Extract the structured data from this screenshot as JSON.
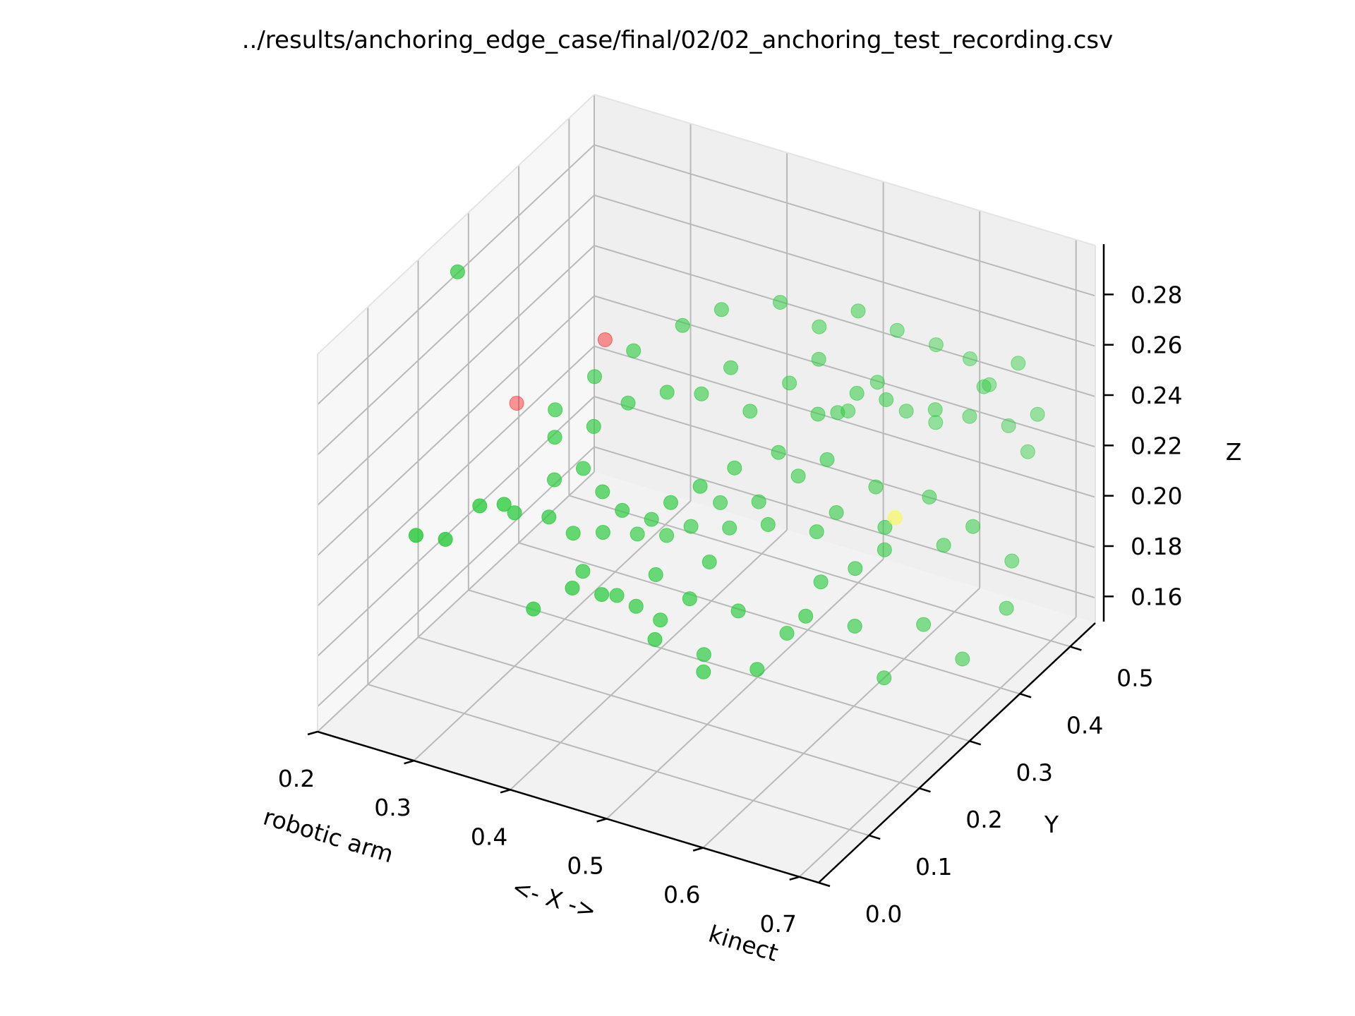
{
  "chart_data": {
    "type": "scatter",
    "title": "../results/anchoring_edge_case/final/02/02_anchoring_test_recording.csv",
    "xlabel": "<- X ->",
    "xlabel_left": "robotic arm",
    "xlabel_right": "kinect",
    "ylabel": "Y",
    "zlabel": "Z",
    "xlim": [
      0.2,
      0.72
    ],
    "ylim": [
      0.0,
      0.55
    ],
    "zlim": [
      0.15,
      0.3
    ],
    "x_ticks": [
      "0.2",
      "0.3",
      "0.4",
      "0.5",
      "0.6",
      "0.7"
    ],
    "y_ticks": [
      "0.0",
      "0.1",
      "0.2",
      "0.3",
      "0.4",
      "0.5"
    ],
    "z_ticks": [
      "0.16",
      "0.18",
      "0.20",
      "0.22",
      "0.24",
      "0.26",
      "0.28"
    ],
    "grid": true,
    "colors": {
      "points": "#2ecc40",
      "red_points": "#ff0000",
      "yellow_point": "#ffff00"
    },
    "series": [
      {
        "color": "#2ecc40",
        "points": [
          [
            0.25,
            0.1,
            0.215
          ],
          [
            0.27,
            0.12,
            0.212
          ],
          [
            0.29,
            0.15,
            0.222
          ],
          [
            0.31,
            0.16,
            0.223
          ],
          [
            0.3,
            0.2,
            0.211
          ],
          [
            0.33,
            0.18,
            0.18
          ],
          [
            0.36,
            0.2,
            0.188
          ],
          [
            0.38,
            0.22,
            0.184
          ],
          [
            0.4,
            0.25,
            0.176
          ],
          [
            0.42,
            0.26,
            0.171
          ],
          [
            0.44,
            0.28,
            0.178
          ],
          [
            0.46,
            0.27,
            0.16
          ],
          [
            0.48,
            0.3,
            0.174
          ],
          [
            0.52,
            0.32,
            0.166
          ],
          [
            0.55,
            0.3,
            0.18
          ],
          [
            0.58,
            0.34,
            0.172
          ],
          [
            0.6,
            0.36,
            0.15
          ],
          [
            0.62,
            0.4,
            0.166
          ],
          [
            0.65,
            0.42,
            0.152
          ],
          [
            0.68,
            0.45,
            0.17
          ],
          [
            0.67,
            0.48,
            0.182
          ],
          [
            0.64,
            0.46,
            0.196
          ],
          [
            0.62,
            0.44,
            0.19
          ],
          [
            0.6,
            0.45,
            0.205
          ],
          [
            0.58,
            0.4,
            0.2
          ],
          [
            0.56,
            0.42,
            0.21
          ],
          [
            0.54,
            0.38,
            0.205
          ],
          [
            0.52,
            0.4,
            0.22
          ],
          [
            0.5,
            0.42,
            0.232
          ],
          [
            0.48,
            0.38,
            0.222
          ],
          [
            0.45,
            0.35,
            0.218
          ],
          [
            0.43,
            0.32,
            0.214
          ],
          [
            0.41,
            0.3,
            0.209
          ],
          [
            0.39,
            0.3,
            0.2
          ],
          [
            0.37,
            0.28,
            0.205
          ],
          [
            0.36,
            0.26,
            0.215
          ],
          [
            0.34,
            0.26,
            0.222
          ],
          [
            0.33,
            0.3,
            0.23
          ],
          [
            0.35,
            0.33,
            0.236
          ],
          [
            0.38,
            0.35,
            0.24
          ],
          [
            0.4,
            0.38,
            0.236
          ],
          [
            0.42,
            0.4,
            0.245
          ],
          [
            0.44,
            0.4,
            0.23
          ],
          [
            0.46,
            0.44,
            0.236
          ],
          [
            0.48,
            0.46,
            0.244
          ],
          [
            0.5,
            0.48,
            0.222
          ],
          [
            0.52,
            0.5,
            0.232
          ],
          [
            0.55,
            0.5,
            0.224
          ],
          [
            0.57,
            0.52,
            0.218
          ],
          [
            0.6,
            0.53,
            0.222
          ],
          [
            0.63,
            0.55,
            0.218
          ],
          [
            0.65,
            0.55,
            0.21
          ],
          [
            0.66,
            0.55,
            0.226
          ],
          [
            0.62,
            0.52,
            0.238
          ],
          [
            0.58,
            0.5,
            0.228
          ],
          [
            0.55,
            0.46,
            0.236
          ],
          [
            0.53,
            0.44,
            0.24
          ],
          [
            0.51,
            0.44,
            0.23
          ],
          [
            0.49,
            0.4,
            0.21
          ],
          [
            0.47,
            0.36,
            0.205
          ],
          [
            0.45,
            0.34,
            0.196
          ],
          [
            0.43,
            0.36,
            0.2
          ],
          [
            0.41,
            0.34,
            0.192
          ],
          [
            0.39,
            0.33,
            0.188
          ],
          [
            0.37,
            0.31,
            0.19
          ],
          [
            0.35,
            0.28,
            0.194
          ],
          [
            0.34,
            0.24,
            0.2
          ],
          [
            0.32,
            0.23,
            0.206
          ],
          [
            0.31,
            0.26,
            0.214
          ],
          [
            0.3,
            0.28,
            0.226
          ],
          [
            0.29,
            0.3,
            0.232
          ],
          [
            0.31,
            0.34,
            0.24
          ],
          [
            0.34,
            0.36,
            0.25
          ],
          [
            0.37,
            0.4,
            0.256
          ],
          [
            0.4,
            0.42,
            0.262
          ],
          [
            0.44,
            0.46,
            0.262
          ],
          [
            0.47,
            0.48,
            0.252
          ],
          [
            0.5,
            0.5,
            0.258
          ],
          [
            0.53,
            0.52,
            0.25
          ],
          [
            0.56,
            0.54,
            0.244
          ],
          [
            0.59,
            0.55,
            0.24
          ],
          [
            0.61,
            0.55,
            0.232
          ],
          [
            0.64,
            0.55,
            0.244
          ],
          [
            0.43,
            0.23,
            0.17
          ],
          [
            0.47,
            0.25,
            0.158
          ],
          [
            0.51,
            0.28,
            0.158
          ],
          [
            0.55,
            0.33,
            0.188
          ],
          [
            0.57,
            0.36,
            0.19
          ],
          [
            0.59,
            0.38,
            0.196
          ],
          [
            0.53,
            0.36,
            0.2
          ],
          [
            0.49,
            0.34,
            0.202
          ],
          [
            0.45,
            0.3,
            0.19
          ],
          [
            0.41,
            0.27,
            0.186
          ],
          [
            0.38,
            0.25,
            0.178
          ],
          [
            0.35,
            0.24,
            0.186
          ],
          [
            0.22,
            0.24,
            0.29
          ]
        ]
      },
      {
        "color": "#ff0000",
        "points": [
          [
            0.25,
            0.3,
            0.23
          ],
          [
            0.3,
            0.38,
            0.246
          ]
        ]
      },
      {
        "color": "#ffff00",
        "points": [
          [
            0.58,
            0.42,
            0.2
          ]
        ]
      }
    ]
  }
}
